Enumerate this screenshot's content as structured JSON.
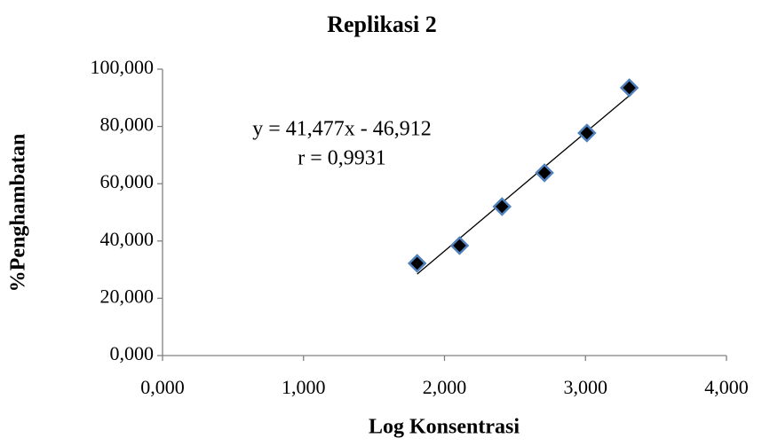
{
  "chart_data": {
    "type": "scatter",
    "title": "Replikasi 2",
    "x_label": "Log Konsentrasi",
    "y_label": "%Penghambatan",
    "annotations": [
      "y = 41,477x - 46,912",
      "r = 0,9931"
    ],
    "series": [
      {
        "name": "Replikasi 2",
        "color": "#000000",
        "edge_color": "#4f81bd",
        "x": [
          1.806,
          2.107,
          2.408,
          2.709,
          3.01,
          3.311
        ],
        "values": [
          32.2,
          38.4,
          52.0,
          63.8,
          77.7,
          93.5
        ]
      }
    ],
    "trendline": true,
    "xlim": [
      0,
      4
    ],
    "xticks": [
      {
        "value": 0,
        "label": "0,000"
      },
      {
        "value": 1,
        "label": "1,000"
      },
      {
        "value": 2,
        "label": "2,000"
      },
      {
        "value": 3,
        "label": "3,000"
      },
      {
        "value": 4,
        "label": "4,000"
      }
    ],
    "ylim": [
      0,
      100
    ],
    "yticks": [
      {
        "value": 0,
        "label": "0,000"
      },
      {
        "value": 20,
        "label": "20,000"
      },
      {
        "value": 40,
        "label": "40,000"
      },
      {
        "value": 60,
        "label": "60,000"
      },
      {
        "value": 80,
        "label": "80,000"
      },
      {
        "value": 100,
        "label": "100,000"
      }
    ],
    "grid": false
  }
}
